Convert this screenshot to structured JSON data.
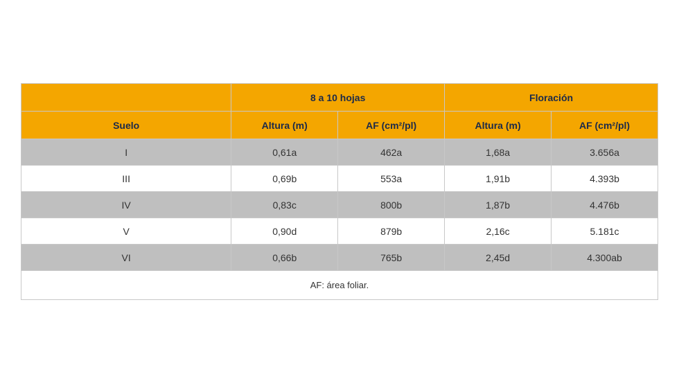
{
  "table": {
    "header_bg": "#f4a600",
    "header_text_color": "#1b2a4a",
    "row_odd_bg": "#bfbfbf",
    "row_even_bg": "#ffffff",
    "border_color": "#c8c8c8",
    "group_headers": {
      "blank": "",
      "group1": "8 a 10 hojas",
      "group2": "Floración"
    },
    "columns": {
      "suelo": "Suelo",
      "altura1": "Altura (m)",
      "af1": "AF (cm²/pl)",
      "altura2": "Altura (m)",
      "af2": "AF (cm²/pl)"
    },
    "rows": [
      {
        "suelo": "I",
        "altura1": "0,61a",
        "af1": "462a",
        "altura2": "1,68a",
        "af2": "3.656a"
      },
      {
        "suelo": "III",
        "altura1": "0,69b",
        "af1": "553a",
        "altura2": "1,91b",
        "af2": "4.393b"
      },
      {
        "suelo": "IV",
        "altura1": "0,83c",
        "af1": "800b",
        "altura2": "1,87b",
        "af2": "4.476b"
      },
      {
        "suelo": "V",
        "altura1": "0,90d",
        "af1": "879b",
        "altura2": "2,16c",
        "af2": "5.181c"
      },
      {
        "suelo": "VI",
        "altura1": "0,66b",
        "af1": "765b",
        "altura2": "2,45d",
        "af2": "4.300ab"
      }
    ],
    "footnote": "AF: área foliar."
  }
}
